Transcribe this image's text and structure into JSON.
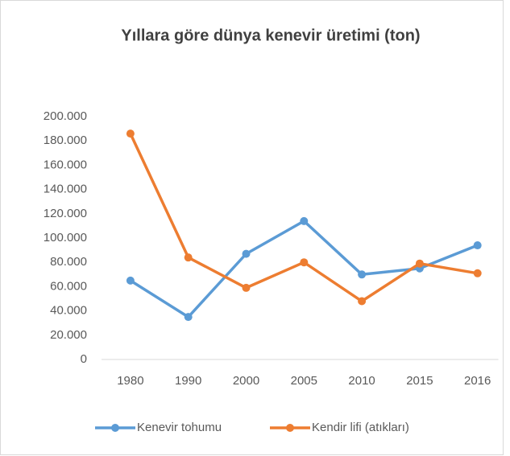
{
  "chart_data": {
    "type": "line",
    "title": "Yıllara göre dünya kenevir üretimi  (ton)",
    "categories": [
      "1980",
      "1990",
      "2000",
      "2005",
      "2010",
      "2015",
      "2016"
    ],
    "series": [
      {
        "name": "Kenevir tohumu",
        "color": "#5b9bd5",
        "values": [
          65000,
          35000,
          87000,
          114000,
          70000,
          75000,
          94000
        ]
      },
      {
        "name": "Kendir lifi (atıkları)",
        "color": "#ed7d31",
        "values": [
          186000,
          84000,
          59000,
          80000,
          48000,
          79000,
          71000
        ]
      }
    ],
    "ylim": [
      0,
      200000
    ],
    "yticks": [
      0,
      {
        "value": 20000,
        "label": "20.000"
      },
      {
        "value": 40000,
        "label": "40.000"
      },
      {
        "value": 60000,
        "label": "60.000"
      },
      {
        "value": 80000,
        "label": "80.000"
      },
      {
        "value": 100000,
        "label": "100.000"
      },
      {
        "value": 120000,
        "label": "120.000"
      },
      {
        "value": 140000,
        "label": "140.000"
      },
      {
        "value": 160000,
        "label": "160.000"
      },
      {
        "value": 180000,
        "label": "180.000"
      },
      {
        "value": 200000,
        "label": "200.000"
      }
    ],
    "grid": false,
    "legend": "bottom"
  }
}
